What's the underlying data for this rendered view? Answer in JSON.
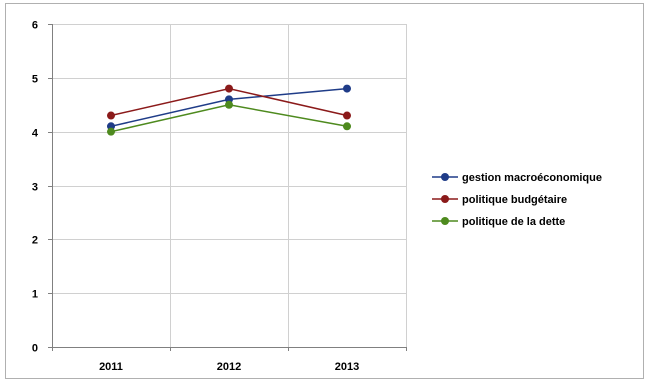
{
  "chart_data": {
    "type": "line",
    "categories": [
      "2011",
      "2012",
      "2013"
    ],
    "x": [
      "2011",
      "2012",
      "2013"
    ],
    "ylim": [
      0,
      6
    ],
    "yticks": [
      0,
      1,
      2,
      3,
      4,
      5,
      6
    ],
    "grid": true,
    "legend_placement": "right",
    "series": [
      {
        "name": "gestion macroéconomique",
        "values": [
          4.1,
          4.6,
          4.8
        ],
        "color": "#1f3c88"
      },
      {
        "name": "politique budgétaire",
        "values": [
          4.3,
          4.8,
          4.3
        ],
        "color": "#8b1a1a"
      },
      {
        "name": "politique de la dette",
        "values": [
          4.0,
          4.5,
          4.1
        ],
        "color": "#4e8a1e"
      }
    ],
    "title": "",
    "xlabel": "",
    "ylabel": ""
  }
}
